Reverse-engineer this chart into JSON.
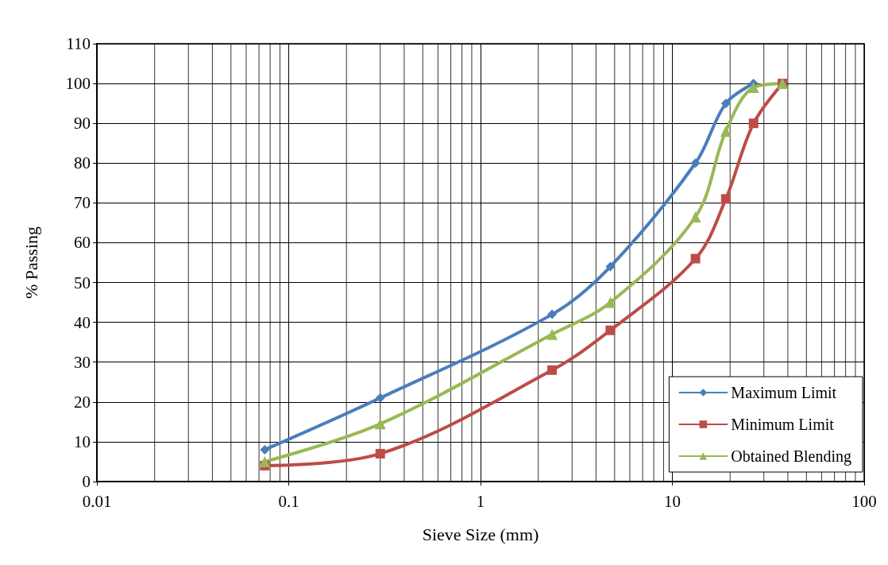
{
  "chart_data": {
    "type": "line",
    "xlabel": "Sieve Size (mm)",
    "ylabel": "% Passing",
    "log": "x",
    "xlim": [
      0.01,
      100
    ],
    "xticks": [
      0.01,
      0.1,
      1,
      10,
      100
    ],
    "ylim": [
      0,
      110
    ],
    "yticks": [
      0,
      10,
      20,
      30,
      40,
      50,
      60,
      70,
      80,
      90,
      100,
      110
    ],
    "grid": true,
    "legend": "bottom right",
    "line_style": "solid",
    "series": [
      {
        "name": "Maximum Limit",
        "color": "#4a7ebb",
        "marker": "diamond",
        "x": [
          0.075,
          0.3,
          2.36,
          4.75,
          13.2,
          19,
          26.5
        ],
        "values": [
          8,
          21,
          42,
          54,
          80,
          95,
          100
        ]
      },
      {
        "name": "Minimum Limit",
        "color": "#be4b48",
        "marker": "square",
        "x": [
          0.075,
          0.3,
          2.36,
          4.75,
          13.2,
          19,
          26.5,
          37.5
        ],
        "values": [
          4,
          7,
          28,
          38,
          56,
          71,
          90,
          100
        ]
      },
      {
        "name": "Obtained Blending",
        "color": "#98b954",
        "marker": "triangle",
        "x": [
          0.075,
          0.3,
          2.36,
          4.75,
          13.2,
          19,
          26.5,
          37.5
        ],
        "values": [
          5,
          14.5,
          37,
          45,
          66.5,
          88,
          99,
          100
        ]
      }
    ]
  }
}
